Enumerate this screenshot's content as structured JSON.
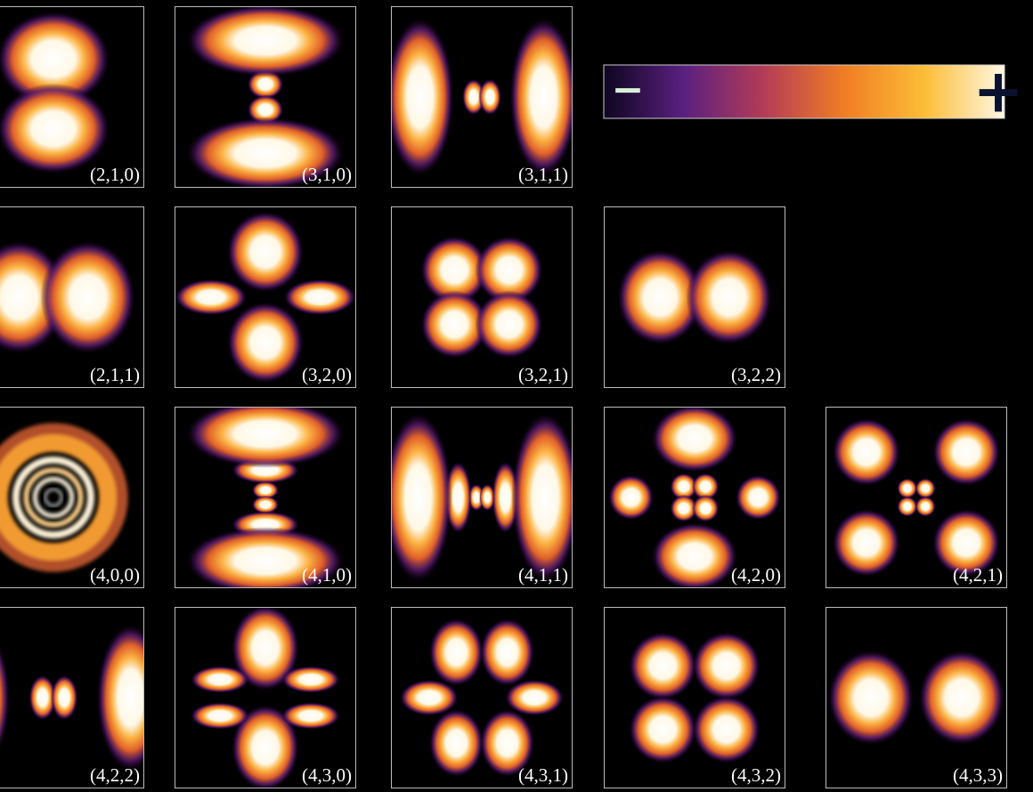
{
  "panels": [
    {
      "label": "(2,1,0)"
    },
    {
      "label": "(3,1,0)"
    },
    {
      "label": "(3,1,1)"
    },
    {
      "label": "(2,1,1)"
    },
    {
      "label": "(3,2,0)"
    },
    {
      "label": "(3,2,1)"
    },
    {
      "label": "(3,2,2)"
    },
    {
      "label": "(4,0,0)"
    },
    {
      "label": "(4,1,0)"
    },
    {
      "label": "(4,1,1)"
    },
    {
      "label": "(4,2,0)"
    },
    {
      "label": "(4,2,1)"
    },
    {
      "label": "(4,2,2)"
    },
    {
      "label": "(4,3,0)"
    },
    {
      "label": "(4,3,1)"
    },
    {
      "label": "(4,3,2)"
    },
    {
      "label": "(4,3,3)"
    }
  ],
  "colorbar": {
    "minus": "−",
    "plus": "+"
  }
}
